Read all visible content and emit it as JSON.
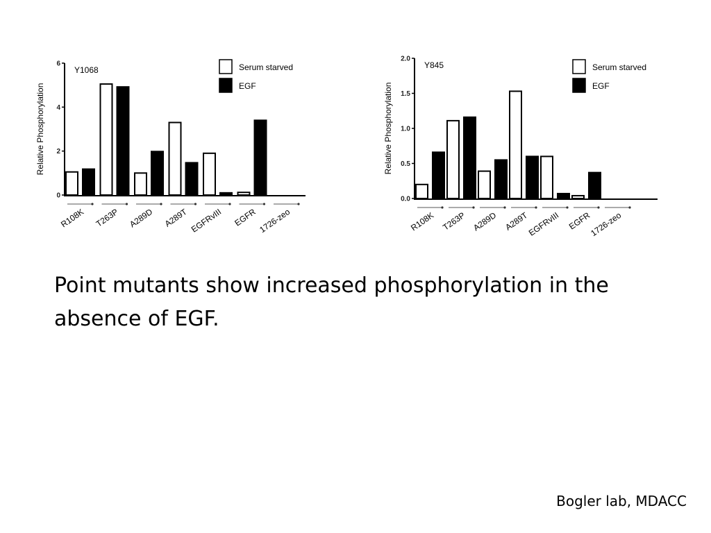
{
  "slide": {
    "caption": "Point mutants show increased phosphorylation in the absence of EGF.",
    "credit": "Bogler lab, MDACC"
  },
  "chart_data": [
    {
      "type": "bar",
      "title": "Y1068",
      "ylabel": "Relative Phosphorylation",
      "xlabel": "",
      "ylim": [
        0,
        6
      ],
      "yticks": [
        0,
        2,
        4,
        6
      ],
      "categories": [
        "R108K",
        "T263P",
        "A289D",
        "A289T",
        "EGFRvIII",
        "EGFR",
        "1726-zeo"
      ],
      "series": [
        {
          "name": "Serum starved",
          "color": "#ffffff",
          "values": [
            1.05,
            5.05,
            1.0,
            3.3,
            1.9,
            0.12,
            0
          ]
        },
        {
          "name": "EGF",
          "color": "#000000",
          "values": [
            1.18,
            4.92,
            1.98,
            1.47,
            0.1,
            3.4,
            0
          ]
        }
      ],
      "legend": "top-right",
      "grid": false
    },
    {
      "type": "bar",
      "title": "Y845",
      "ylabel": "Relative Phosphorylation",
      "xlabel": "",
      "ylim": [
        0,
        2.0
      ],
      "yticks": [
        "0.0",
        "0.5",
        "1.0",
        "1.5",
        "2.0"
      ],
      "categories": [
        "R108K",
        "T263P",
        "A289D",
        "A289T",
        "EGFRvIII",
        "EGFR",
        "1726-zeo"
      ],
      "series": [
        {
          "name": "Serum starved",
          "color": "#ffffff",
          "values": [
            0.2,
            1.11,
            0.39,
            1.53,
            0.6,
            0.04,
            0
          ]
        },
        {
          "name": "EGF",
          "color": "#000000",
          "values": [
            0.66,
            1.16,
            0.55,
            0.6,
            0.07,
            0.37,
            0
          ]
        }
      ],
      "legend": "top-right",
      "grid": false
    }
  ]
}
